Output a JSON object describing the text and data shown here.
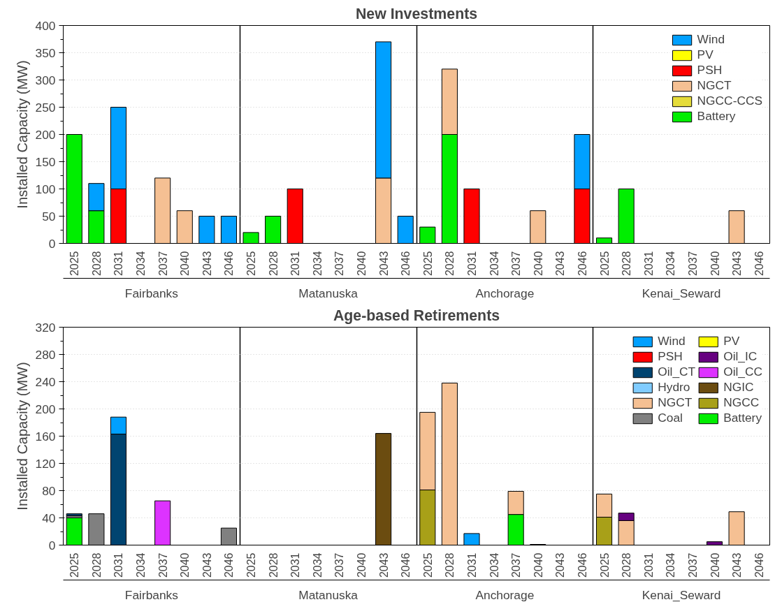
{
  "chart_data": [
    {
      "type": "bar",
      "stacked": true,
      "title": "New Investments",
      "ylabel": "Installed Capacity (MW)",
      "categories": [
        "2025",
        "2028",
        "2031",
        "2034",
        "2037",
        "2040",
        "2043",
        "2046",
        "2025",
        "2028",
        "2031",
        "2034",
        "2037",
        "2040",
        "2043",
        "2046",
        "2025",
        "2028",
        "2031",
        "2034",
        "2037",
        "2040",
        "2043",
        "2046",
        "2025",
        "2028",
        "2031",
        "2034",
        "2037",
        "2040",
        "2043",
        "2046"
      ],
      "annotations": [
        "Fairbanks",
        "Matanuska",
        "Anchorage",
        "Kenai_Seward"
      ],
      "ylim": [
        0,
        400
      ],
      "yticks": [
        0,
        50,
        100,
        150,
        200,
        250,
        300,
        350,
        400
      ],
      "grid": "y",
      "legend": "top right",
      "series": [
        {
          "name": "Battery",
          "color": "#00ee00",
          "values": [
            200,
            60,
            0,
            0,
            0,
            0,
            0,
            0,
            20,
            50,
            0,
            0,
            0,
            0,
            0,
            0,
            30,
            200,
            0,
            0,
            0,
            0,
            0,
            0,
            10,
            100,
            0,
            0,
            0,
            0,
            0,
            0
          ]
        },
        {
          "name": "NGCC-CCS",
          "color": "#e5dc3a",
          "values": [
            0,
            0,
            0,
            0,
            0,
            0,
            0,
            0,
            0,
            0,
            0,
            0,
            0,
            0,
            0,
            0,
            0,
            0,
            0,
            0,
            0,
            0,
            0,
            0,
            0,
            0,
            0,
            0,
            0,
            0,
            0,
            0
          ]
        },
        {
          "name": "NGCT",
          "color": "#f5c093",
          "values": [
            0,
            0,
            0,
            0,
            120,
            60,
            0,
            0,
            0,
            0,
            0,
            0,
            0,
            0,
            120,
            0,
            0,
            120,
            0,
            0,
            0,
            60,
            0,
            0,
            0,
            0,
            0,
            0,
            0,
            0,
            60,
            0
          ]
        },
        {
          "name": "PSH",
          "color": "#ff0000",
          "values": [
            0,
            0,
            100,
            0,
            0,
            0,
            0,
            0,
            0,
            0,
            100,
            0,
            0,
            0,
            0,
            0,
            0,
            0,
            100,
            0,
            0,
            0,
            0,
            100,
            0,
            0,
            0,
            0,
            0,
            0,
            0,
            0
          ]
        },
        {
          "name": "PV",
          "color": "#ffff00",
          "values": [
            0,
            0,
            0,
            0,
            0,
            0,
            0,
            0,
            0,
            0,
            0,
            0,
            0,
            0,
            0,
            0,
            0,
            0,
            0,
            0,
            0,
            0,
            0,
            0,
            0,
            0,
            0,
            0,
            0,
            0,
            0,
            0
          ]
        },
        {
          "name": "Wind",
          "color": "#00a0ff",
          "values": [
            0,
            50,
            150,
            0,
            0,
            0,
            50,
            50,
            0,
            0,
            0,
            0,
            0,
            0,
            250,
            50,
            0,
            0,
            0,
            0,
            0,
            0,
            0,
            100,
            0,
            0,
            0,
            0,
            0,
            0,
            0,
            0
          ]
        }
      ]
    },
    {
      "type": "bar",
      "stacked": true,
      "title": "Age-based Retirements",
      "ylabel": "Installed Capacity (MW)",
      "categories": [
        "2025",
        "2028",
        "2031",
        "2034",
        "2037",
        "2040",
        "2043",
        "2046",
        "2025",
        "2028",
        "2031",
        "2034",
        "2037",
        "2040",
        "2043",
        "2046",
        "2025",
        "2028",
        "2031",
        "2034",
        "2037",
        "2040",
        "2043",
        "2046",
        "2025",
        "2028",
        "2031",
        "2034",
        "2037",
        "2040",
        "2043",
        "2046"
      ],
      "annotations": [
        "Fairbanks",
        "Matanuska",
        "Anchorage",
        "Kenai_Seward"
      ],
      "ylim": [
        0,
        320
      ],
      "yticks": [
        0,
        40,
        80,
        120,
        160,
        200,
        240,
        280,
        320
      ],
      "grid": "y",
      "legend": "top right",
      "series": [
        {
          "name": "Battery",
          "color": "#00ee00",
          "values": [
            40,
            0,
            0,
            0,
            0,
            0,
            0,
            0,
            0,
            0,
            0,
            0,
            0,
            0,
            0,
            0,
            0,
            0,
            0,
            0,
            45,
            0,
            0,
            0,
            0,
            0,
            0,
            0,
            0,
            0,
            0,
            0
          ]
        },
        {
          "name": "Coal",
          "color": "#808080",
          "values": [
            3,
            46,
            0,
            0,
            0,
            0,
            0,
            25,
            0,
            0,
            0,
            0,
            0,
            0,
            0,
            0,
            0,
            0,
            0,
            0,
            0,
            0,
            0,
            0,
            0,
            0,
            0,
            0,
            0,
            0,
            0,
            0
          ]
        },
        {
          "name": "NGCC",
          "color": "#a8a018",
          "values": [
            0,
            0,
            0,
            0,
            0,
            0,
            0,
            0,
            0,
            0,
            0,
            0,
            0,
            0,
            0,
            0,
            81,
            0,
            0,
            0,
            0,
            0,
            0,
            0,
            41,
            0,
            0,
            0,
            0,
            0,
            0,
            0
          ]
        },
        {
          "name": "NGCT",
          "color": "#f5c093",
          "values": [
            0,
            0,
            0,
            0,
            0,
            0,
            0,
            0,
            0,
            0,
            0,
            0,
            0,
            0,
            0,
            0,
            114,
            238,
            0,
            0,
            34,
            0,
            0,
            0,
            34,
            36,
            0,
            0,
            0,
            0,
            49,
            0
          ]
        },
        {
          "name": "NGIC",
          "color": "#6b4c10",
          "values": [
            0,
            0,
            0,
            0,
            0,
            0,
            0,
            0,
            0,
            0,
            0,
            0,
            0,
            0,
            164,
            0,
            0,
            0,
            0,
            0,
            0,
            0,
            0,
            0,
            0,
            0,
            0,
            0,
            0,
            0,
            0,
            0
          ]
        },
        {
          "name": "Hydro",
          "color": "#80ccff",
          "values": [
            0,
            0,
            0,
            0,
            0,
            0,
            0,
            0,
            0,
            0,
            0,
            0,
            0,
            0,
            0,
            0,
            0,
            0,
            0,
            0,
            0,
            0,
            0,
            0,
            0,
            0,
            0,
            0,
            0,
            0,
            0,
            0
          ]
        },
        {
          "name": "Oil_CC",
          "color": "#dd33ff",
          "values": [
            0,
            0,
            0,
            0,
            65,
            0,
            0,
            0,
            0,
            0,
            0,
            0,
            0,
            0,
            0,
            0,
            0,
            0,
            0,
            0,
            0,
            0,
            0,
            0,
            0,
            0,
            0,
            0,
            0,
            0,
            0,
            0
          ]
        },
        {
          "name": "Oil_CT",
          "color": "#004470",
          "values": [
            3,
            0,
            163,
            0,
            0,
            0,
            0,
            0,
            0,
            0,
            0,
            0,
            0,
            0,
            0,
            0,
            0,
            0,
            0,
            0,
            0,
            0,
            0,
            0,
            0,
            0,
            0,
            0,
            0,
            0,
            0,
            0
          ]
        },
        {
          "name": "Oil_IC",
          "color": "#660080",
          "values": [
            0,
            0,
            0,
            0,
            0,
            0,
            0,
            0,
            0,
            0,
            0,
            0,
            0,
            0,
            0,
            0,
            0,
            0,
            0,
            0,
            0,
            1,
            0,
            0,
            0,
            11,
            0,
            0,
            0,
            5,
            0,
            0
          ]
        },
        {
          "name": "PSH",
          "color": "#ff0000",
          "values": [
            0,
            0,
            0,
            0,
            0,
            0,
            0,
            0,
            0,
            0,
            0,
            0,
            0,
            0,
            0,
            0,
            0,
            0,
            0,
            0,
            0,
            0,
            0,
            0,
            0,
            0,
            0,
            0,
            0,
            0,
            0,
            0
          ]
        },
        {
          "name": "PV",
          "color": "#ffff00",
          "values": [
            0,
            0,
            0,
            0,
            0,
            0,
            0,
            0,
            0,
            0,
            0,
            0,
            0,
            0,
            0,
            0,
            0,
            0,
            0,
            0,
            0,
            0,
            0,
            0,
            0,
            0,
            0,
            0,
            0,
            0,
            0,
            0
          ]
        },
        {
          "name": "Wind",
          "color": "#00a0ff",
          "values": [
            0,
            0,
            25,
            0,
            0,
            0,
            0,
            0,
            0,
            0,
            0,
            0,
            0,
            0,
            0,
            0,
            0,
            0,
            17,
            0,
            0,
            0,
            0,
            0,
            0,
            0,
            0,
            0,
            0,
            0,
            0,
            0
          ]
        }
      ]
    }
  ]
}
